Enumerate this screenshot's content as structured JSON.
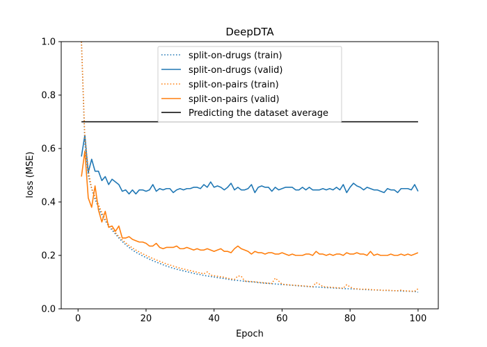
{
  "chart_data": {
    "type": "line",
    "title": "DeepDTA",
    "xlabel": "Epoch",
    "ylabel": "loss (MSE)",
    "xlim": [
      -4.95,
      105.95
    ],
    "ylim": [
      0.0,
      1.0
    ],
    "xticks": [
      0,
      20,
      40,
      60,
      80,
      100
    ],
    "yticks": [
      0.0,
      0.2,
      0.4,
      0.6,
      0.8,
      1.0
    ],
    "xtick_labels": [
      "0",
      "20",
      "40",
      "60",
      "80",
      "100"
    ],
    "ytick_labels": [
      "0.0",
      "0.2",
      "0.4",
      "0.6",
      "0.8",
      "1.0"
    ],
    "grid": false,
    "legend_position": "top-center",
    "baseline": {
      "name": "Predicting the dataset average",
      "value": 0.7,
      "x": [
        1,
        100
      ],
      "color": "#000000"
    },
    "series": [
      {
        "name": "split-on-drugs (train)",
        "color": "#1f77b4",
        "style": "dotted",
        "x_start": 1,
        "values": [
          1.0,
          0.62,
          0.5,
          0.45,
          0.41,
          0.38,
          0.35,
          0.33,
          0.31,
          0.295,
          0.28,
          0.265,
          0.252,
          0.24,
          0.23,
          0.22,
          0.212,
          0.205,
          0.198,
          0.192,
          0.186,
          0.18,
          0.175,
          0.17,
          0.165,
          0.16,
          0.156,
          0.152,
          0.148,
          0.145,
          0.142,
          0.139,
          0.136,
          0.133,
          0.13,
          0.128,
          0.125,
          0.123,
          0.121,
          0.119,
          0.117,
          0.115,
          0.113,
          0.111,
          0.109,
          0.107,
          0.106,
          0.105,
          0.103,
          0.102,
          0.101,
          0.1,
          0.098,
          0.097,
          0.096,
          0.095,
          0.094,
          0.093,
          0.092,
          0.091,
          0.09,
          0.089,
          0.088,
          0.087,
          0.086,
          0.085,
          0.084,
          0.083,
          0.082,
          0.082,
          0.081,
          0.08,
          0.079,
          0.079,
          0.078,
          0.077,
          0.077,
          0.076,
          0.075,
          0.075,
          0.074,
          0.074,
          0.073,
          0.072,
          0.072,
          0.071,
          0.071,
          0.07,
          0.07,
          0.069,
          0.069,
          0.068,
          0.068,
          0.067,
          0.067,
          0.066,
          0.066,
          0.065,
          0.065,
          0.062
        ]
      },
      {
        "name": "split-on-drugs (valid)",
        "color": "#1f77b4",
        "style": "solid",
        "x_start": 1,
        "values": [
          0.57,
          0.65,
          0.51,
          0.56,
          0.515,
          0.515,
          0.48,
          0.495,
          0.465,
          0.485,
          0.475,
          0.465,
          0.44,
          0.445,
          0.43,
          0.445,
          0.43,
          0.445,
          0.445,
          0.44,
          0.445,
          0.465,
          0.44,
          0.45,
          0.445,
          0.45,
          0.45,
          0.435,
          0.445,
          0.45,
          0.445,
          0.45,
          0.45,
          0.455,
          0.455,
          0.45,
          0.465,
          0.455,
          0.475,
          0.455,
          0.46,
          0.455,
          0.445,
          0.455,
          0.47,
          0.445,
          0.455,
          0.445,
          0.445,
          0.45,
          0.465,
          0.435,
          0.455,
          0.46,
          0.455,
          0.455,
          0.44,
          0.455,
          0.445,
          0.45,
          0.455,
          0.455,
          0.455,
          0.445,
          0.445,
          0.455,
          0.445,
          0.455,
          0.445,
          0.445,
          0.445,
          0.45,
          0.445,
          0.45,
          0.445,
          0.455,
          0.445,
          0.465,
          0.435,
          0.455,
          0.47,
          0.46,
          0.455,
          0.445,
          0.455,
          0.45,
          0.445,
          0.445,
          0.44,
          0.435,
          0.45,
          0.445,
          0.445,
          0.435,
          0.45,
          0.45,
          0.45,
          0.445,
          0.465,
          0.44
        ]
      },
      {
        "name": "split-on-pairs (train)",
        "color": "#ff7f0e",
        "style": "dotted",
        "x_start": 1,
        "values": [
          1.0,
          0.64,
          0.52,
          0.45,
          0.42,
          0.39,
          0.36,
          0.335,
          0.315,
          0.3,
          0.285,
          0.27,
          0.258,
          0.247,
          0.237,
          0.228,
          0.22,
          0.213,
          0.206,
          0.2,
          0.194,
          0.188,
          0.183,
          0.178,
          0.173,
          0.168,
          0.164,
          0.16,
          0.156,
          0.152,
          0.149,
          0.146,
          0.143,
          0.14,
          0.137,
          0.134,
          0.131,
          0.138,
          0.126,
          0.124,
          0.122,
          0.12,
          0.118,
          0.114,
          0.112,
          0.11,
          0.123,
          0.122,
          0.104,
          0.103,
          0.102,
          0.101,
          0.1,
          0.098,
          0.097,
          0.096,
          0.095,
          0.115,
          0.104,
          0.092,
          0.091,
          0.09,
          0.089,
          0.088,
          0.087,
          0.086,
          0.085,
          0.084,
          0.083,
          0.098,
          0.092,
          0.083,
          0.082,
          0.081,
          0.08,
          0.079,
          0.078,
          0.077,
          0.09,
          0.082,
          0.076,
          0.075,
          0.074,
          0.073,
          0.074,
          0.072,
          0.071,
          0.071,
          0.07,
          0.069,
          0.07,
          0.069,
          0.068,
          0.068,
          0.07,
          0.067,
          0.067,
          0.066,
          0.066,
          0.075
        ]
      },
      {
        "name": "split-on-pairs (valid)",
        "color": "#ff7f0e",
        "style": "solid",
        "x_start": 1,
        "values": [
          0.495,
          0.59,
          0.415,
          0.38,
          0.46,
          0.37,
          0.325,
          0.365,
          0.305,
          0.31,
          0.29,
          0.31,
          0.265,
          0.265,
          0.27,
          0.26,
          0.255,
          0.25,
          0.25,
          0.245,
          0.235,
          0.235,
          0.245,
          0.23,
          0.225,
          0.23,
          0.23,
          0.23,
          0.235,
          0.225,
          0.225,
          0.23,
          0.225,
          0.22,
          0.225,
          0.22,
          0.22,
          0.225,
          0.22,
          0.215,
          0.22,
          0.225,
          0.215,
          0.215,
          0.21,
          0.225,
          0.235,
          0.225,
          0.22,
          0.215,
          0.205,
          0.215,
          0.21,
          0.21,
          0.205,
          0.21,
          0.21,
          0.205,
          0.205,
          0.21,
          0.205,
          0.2,
          0.205,
          0.2,
          0.2,
          0.2,
          0.205,
          0.205,
          0.2,
          0.215,
          0.205,
          0.205,
          0.2,
          0.205,
          0.2,
          0.205,
          0.205,
          0.2,
          0.21,
          0.205,
          0.205,
          0.21,
          0.205,
          0.205,
          0.2,
          0.215,
          0.2,
          0.205,
          0.2,
          0.2,
          0.2,
          0.205,
          0.2,
          0.2,
          0.205,
          0.2,
          0.205,
          0.2,
          0.205,
          0.21
        ]
      }
    ]
  }
}
